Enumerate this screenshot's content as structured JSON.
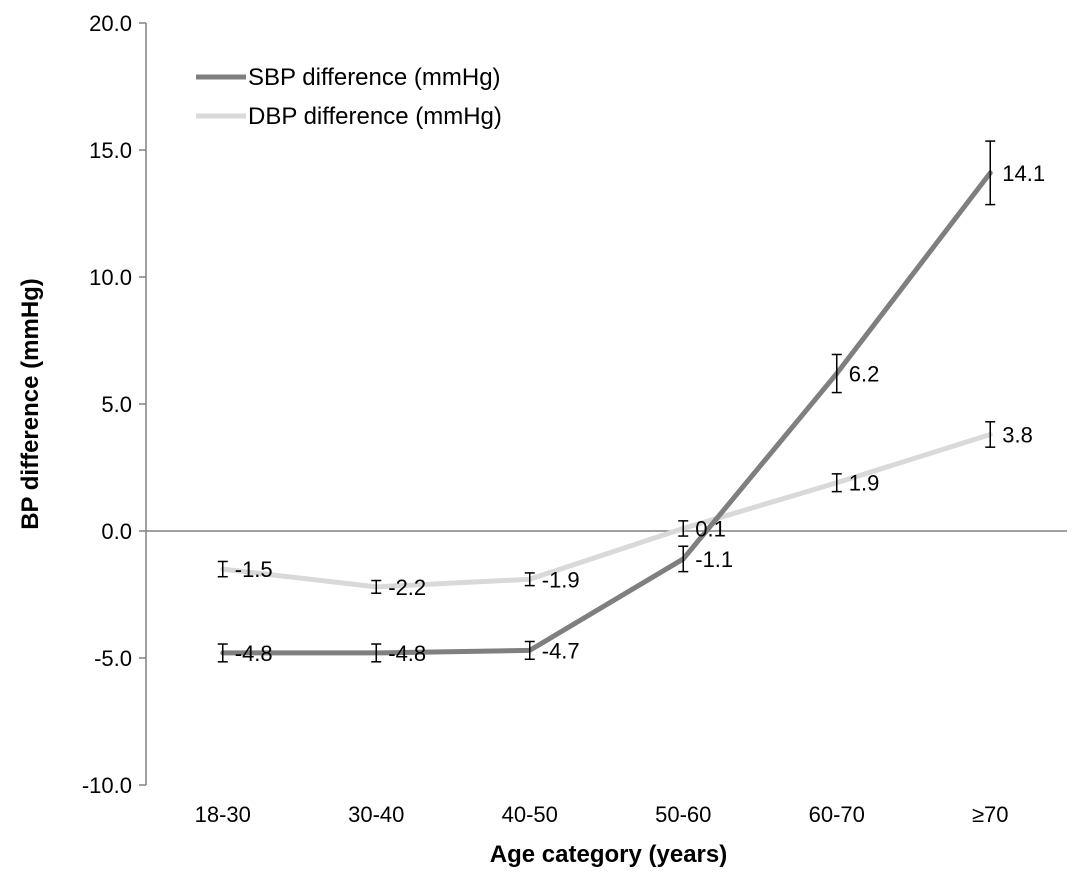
{
  "chart_data": {
    "type": "line",
    "title": "",
    "xlabel": "Age category (years)",
    "ylabel": "BP difference (mmHg)",
    "categories": [
      "18-30",
      "30-40",
      "40-50",
      "50-60",
      "60-70",
      "≥70"
    ],
    "ylim": [
      -10,
      20
    ],
    "ytick_labels": [
      "-10.0",
      "-5.0",
      "0.0",
      "5.0",
      "10.0",
      "15.0",
      "20.0"
    ],
    "legend_position": "top-left",
    "grid": false,
    "series": [
      {
        "name": "SBP difference (mmHg)",
        "color": "#7f7f7f",
        "values": [
          -4.8,
          -4.8,
          -4.7,
          -1.1,
          6.2,
          14.1
        ],
        "labels": [
          "-4.8",
          "-4.8",
          "-4.7",
          "-1.1",
          "6.2",
          "14.1"
        ],
        "error": [
          0.35,
          0.35,
          0.35,
          0.5,
          0.75,
          1.25
        ]
      },
      {
        "name": "DBP difference (mmHg)",
        "color": "#d9d9d9",
        "values": [
          -1.5,
          -2.2,
          -1.9,
          0.1,
          1.9,
          3.8
        ],
        "labels": [
          "-1.5",
          "-2.2",
          "-1.9",
          "0.1",
          "1.9",
          "3.8"
        ],
        "error": [
          0.3,
          0.25,
          0.25,
          0.3,
          0.35,
          0.5
        ]
      }
    ]
  }
}
